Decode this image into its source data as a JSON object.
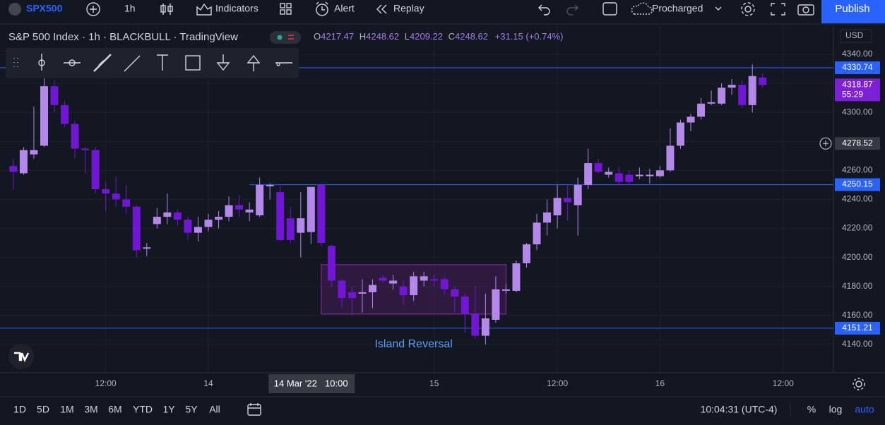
{
  "toolbar": {
    "symbol": "SPX500",
    "interval": "1h",
    "indicators": "Indicators",
    "alert": "Alert",
    "replay": "Replay",
    "layout": "Procharged",
    "publish": "Publish"
  },
  "legend": {
    "title": "S&P 500 Index · 1h · BLACKBULL · TradingView",
    "ohlc": [
      {
        "label": "O",
        "value": "4217.47"
      },
      {
        "label": "H",
        "value": "4248.62"
      },
      {
        "label": "L",
        "value": "4209.22"
      },
      {
        "label": "C",
        "value": "4248.62"
      }
    ],
    "change": "+31.15 (+0.74%)"
  },
  "chart_data": {
    "type": "candlestick",
    "up_color": "#b388ea",
    "down_color": "#7016d4",
    "grid": true,
    "currency": "USD",
    "open": [
      4263,
      4258,
      4271,
      4277,
      4318,
      4305,
      4292,
      4275,
      4274,
      4247,
      4244,
      4240,
      4235,
      4206,
      4223,
      4228,
      4231,
      4226,
      4217,
      4221,
      4226,
      4228,
      4236,
      4231,
      4229,
      4249,
      4245,
      4227,
      4217,
      4217.47,
      4250,
      4208,
      4184,
      4176,
      4175,
      4176,
      4186,
      4182,
      4180,
      4174,
      4184,
      4185,
      4185,
      4178,
      4173,
      4161,
      4146,
      4157,
      4177,
      4177,
      4196,
      4209,
      4224,
      4229,
      4241,
      4236,
      4250,
      4265,
      4257,
      4258,
      4257,
      4256,
      4256,
      4256,
      4260,
      4277,
      4293,
      4297,
      4306,
      4306,
      4317,
      4319,
      4305,
      4324
    ],
    "high": [
      4268,
      4276,
      4304,
      4336,
      4322,
      4308,
      4294,
      4276,
      4276,
      4252,
      4256,
      4250,
      4236,
      4210,
      4234,
      4244,
      4233,
      4228,
      4228,
      4230,
      4232,
      4242,
      4243,
      4238,
      4255,
      4251,
      4250,
      4235,
      4245,
      4248.62,
      4251,
      4209,
      4185,
      4180,
      4185,
      4185,
      4188,
      4188,
      4184,
      4190,
      4190,
      4188,
      4187,
      4180,
      4175,
      4180,
      4175,
      4187,
      4182,
      4198,
      4210,
      4230,
      4240,
      4250,
      4250,
      4255,
      4275,
      4268,
      4262,
      4262,
      4260,
      4262,
      4261,
      4263,
      4289,
      4295,
      4299,
      4310,
      4315,
      4320,
      4323,
      4322,
      4333,
      4327
    ],
    "low": [
      4246,
      4257,
      4268,
      4276,
      4300,
      4290,
      4268,
      4258,
      4244,
      4232,
      4235,
      4230,
      4200,
      4201,
      4220,
      4223,
      4222,
      4212,
      4211,
      4218,
      4220,
      4225,
      4228,
      4225,
      4228,
      4240,
      4211,
      4210,
      4200,
      4209.22,
      4208,
      4180,
      4165,
      4160,
      4162,
      4165,
      4182,
      4178,
      4167,
      4170,
      4180,
      4180,
      4174,
      4162,
      4148,
      4144,
      4140,
      4155,
      4175,
      4176,
      4193,
      4205,
      4215,
      4220,
      4225,
      4215,
      4247,
      4258,
      4255,
      4250,
      4250,
      4254,
      4251,
      4255,
      4259,
      4275,
      4287,
      4295,
      4305,
      4305,
      4312,
      4303,
      4300,
      4317
    ],
    "close": [
      4259,
      4274,
      4274,
      4318,
      4305,
      4292,
      4275,
      4274,
      4247,
      4244,
      4240,
      4235,
      4205,
      4207,
      4228,
      4231,
      4226,
      4217,
      4221,
      4226,
      4228,
      4236,
      4233,
      4233,
      4250,
      4250,
      4212,
      4212,
      4227,
      4248.62,
      4210,
      4184,
      4172,
      4172,
      4176,
      4181,
      4184,
      4184,
      4174,
      4187,
      4187,
      4184,
      4178,
      4173,
      4161,
      4146,
      4158,
      4178,
      4178,
      4196,
      4209,
      4224,
      4231,
      4241,
      4238,
      4250,
      4265,
      4259,
      4259,
      4252,
      4252,
      4257,
      4257,
      4260,
      4277,
      4293,
      4297,
      4306,
      4307,
      4317,
      4319,
      4305,
      4325,
      4318.87
    ],
    "xlim": [
      -1.3,
      79.9
    ],
    "xticks": [
      {
        "value": 9,
        "label": "12:00"
      },
      {
        "value": 19,
        "label": "14"
      },
      {
        "value": 41,
        "label": "15"
      },
      {
        "value": 53,
        "label": "12:00"
      },
      {
        "value": 63,
        "label": "16"
      },
      {
        "value": 75,
        "label": "12:00"
      }
    ],
    "ylim": [
      4120.5,
      4360.4
    ],
    "yticks": [
      {
        "value": 4140,
        "label": "4140.00"
      },
      {
        "value": 4160,
        "label": "4160.00"
      },
      {
        "value": 4180,
        "label": "4180.00"
      },
      {
        "value": 4200,
        "label": "4200.00"
      },
      {
        "value": 4220,
        "label": "4220.00"
      },
      {
        "value": 4240,
        "label": "4240.00"
      },
      {
        "value": 4260,
        "label": "4260.00"
      },
      {
        "value": 4280,
        "label": "4280.00"
      },
      {
        "value": 4300,
        "label": "4300.00"
      },
      {
        "value": 4320,
        "label": "4320.00"
      },
      {
        "value": 4340,
        "label": "4340.00"
      }
    ],
    "hlines": [
      {
        "value": 4330.74
      },
      {
        "value": 4250.15,
        "x_start": 23
      },
      {
        "value": 4151.21
      }
    ],
    "last_price": {
      "value": 4318.87,
      "countdown": "55:29"
    },
    "crosshair": {
      "x": 29,
      "date": "14 Mar '22",
      "time": "10:00",
      "price": 4278.52
    },
    "annotation": {
      "text": "Island Reversal",
      "x": [
        30,
        48
      ],
      "y": [
        4161,
        4195
      ]
    }
  },
  "bottom": {
    "ranges": [
      "1D",
      "5D",
      "1M",
      "3M",
      "6M",
      "YTD",
      "1Y",
      "5Y",
      "All"
    ],
    "time": "10:04:31 (UTC-4)",
    "percent": "%",
    "log": "log",
    "auto": "auto"
  }
}
